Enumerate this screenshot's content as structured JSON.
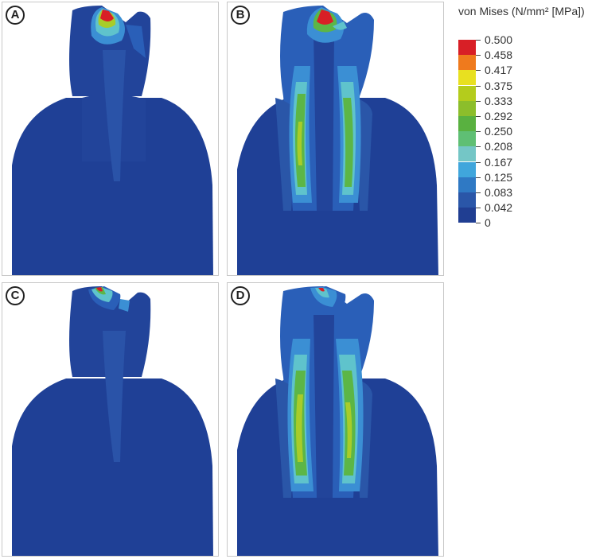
{
  "legend": {
    "title": "von Mises (N/mm² [MPa])",
    "labels": [
      "0.500",
      "0.458",
      "0.417",
      "0.375",
      "0.333",
      "0.292",
      "0.250",
      "0.208",
      "0.167",
      "0.125",
      "0.083",
      "0.042",
      "0"
    ],
    "colors": [
      "#d81f26",
      "#ef7a1d",
      "#e8e020",
      "#b4cc1c",
      "#8cbe2b",
      "#59b140",
      "#5fbf74",
      "#74c6c6",
      "#40a6dc",
      "#2f79c4",
      "#2a56a8",
      "#203e92"
    ]
  },
  "panels": [
    {
      "id": "A"
    },
    {
      "id": "B"
    },
    {
      "id": "C"
    },
    {
      "id": "D"
    }
  ],
  "colors": {
    "base": "#22449a",
    "deep": "#1d3d92",
    "mid": "#2a5fb8",
    "light_blue": "#3b8fd4",
    "cyan": "#5fc3cc",
    "green": "#5cb646",
    "yellow_green": "#a8cc2a",
    "red": "#d81f26",
    "orange": "#ef8a1d"
  }
}
